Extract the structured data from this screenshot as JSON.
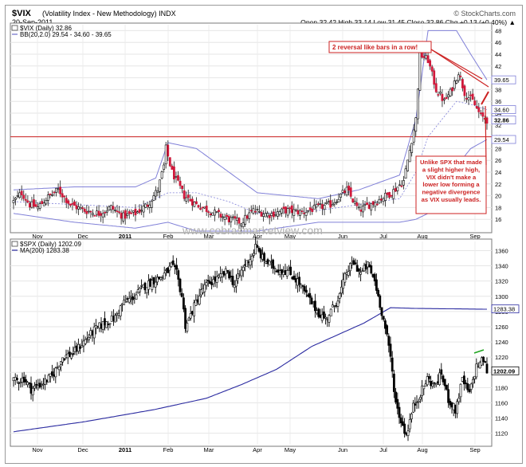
{
  "header": {
    "symbol": "$VIX",
    "name": "(Volatility Index - New Methodology) INDX",
    "date": "20-Sep-2011",
    "watermark_top": "© StockCharts.com",
    "quote": "Open 32.42  High 33.14  Low 31.45  Close 32.86  Chg +0.13 (+0.40%) ▲"
  },
  "watermark": "www.cobrasmarketview.com",
  "chart_data": [
    {
      "type": "candlestick",
      "title": "$VIX (Daily) 32.86",
      "legend": [
        "$VIX (Daily) 32.86",
        "BB(20,2.0) 29.54 - 34.60 - 39.65"
      ],
      "x_tick_labels": [
        "Nov",
        "Dec",
        "2011",
        "Feb",
        "Mar",
        "Apr",
        "May",
        "Jun",
        "Jul",
        "Aug",
        "Sep"
      ],
      "y_tick_labels": [
        16,
        18,
        20,
        22,
        24,
        26,
        28,
        30,
        32,
        34,
        36,
        38,
        40,
        42,
        44,
        46,
        48
      ],
      "ylim": [
        14,
        49
      ],
      "price_labels": {
        "upper_bb": "39.65",
        "mid_bb": "34.60",
        "close": "32.86",
        "lower_bb": "29.54"
      },
      "horizontal_line": 30,
      "annotations": [
        "2 reversal like bars in a row!",
        "Unlike SPX that made a slight higher high, VIX didn't make a lower low forming a negative divergence as VIX usually leads."
      ],
      "close_path": [
        [
          0,
          19
        ],
        [
          4,
          20.5
        ],
        [
          8,
          18.5
        ],
        [
          12,
          18
        ],
        [
          16,
          19.5
        ],
        [
          22,
          21
        ],
        [
          28,
          18.5
        ],
        [
          35,
          17.5
        ],
        [
          42,
          17
        ],
        [
          48,
          18
        ],
        [
          54,
          16.5
        ],
        [
          60,
          17
        ],
        [
          66,
          18.5
        ],
        [
          71,
          21
        ],
        [
          74,
          25
        ],
        [
          75,
          28
        ],
        [
          78,
          24
        ],
        [
          84,
          20
        ],
        [
          90,
          18.5
        ],
        [
          98,
          17.2
        ],
        [
          106,
          16
        ],
        [
          112,
          15.5
        ],
        [
          118,
          17.5
        ],
        [
          126,
          16.8
        ],
        [
          134,
          17.5
        ],
        [
          142,
          17.2
        ],
        [
          150,
          18
        ],
        [
          156,
          18.5
        ],
        [
          164,
          21
        ],
        [
          170,
          17.5
        ],
        [
          178,
          19
        ],
        [
          186,
          20.5
        ],
        [
          192,
          22.5
        ],
        [
          198,
          33
        ],
        [
          200,
          44
        ],
        [
          204,
          43
        ],
        [
          208,
          38
        ],
        [
          212,
          36
        ],
        [
          215,
          37.5
        ],
        [
          219,
          41
        ],
        [
          222,
          37.5
        ],
        [
          226,
          36
        ],
        [
          230,
          33.5
        ],
        [
          233,
          32.86
        ]
      ],
      "bb_upper_path": [
        [
          0,
          21
        ],
        [
          30,
          21.5
        ],
        [
          60,
          21.5
        ],
        [
          70,
          23
        ],
        [
          76,
          29
        ],
        [
          90,
          28
        ],
        [
          106,
          24
        ],
        [
          120,
          20.5
        ],
        [
          150,
          19.5
        ],
        [
          170,
          21
        ],
        [
          190,
          23.5
        ],
        [
          198,
          33
        ],
        [
          204,
          48
        ],
        [
          218,
          48
        ],
        [
          225,
          44
        ],
        [
          233,
          39.65
        ]
      ],
      "bb_mid_path": [
        [
          0,
          19
        ],
        [
          30,
          18.5
        ],
        [
          60,
          18
        ],
        [
          76,
          20.5
        ],
        [
          90,
          20.5
        ],
        [
          106,
          19
        ],
        [
          120,
          17
        ],
        [
          150,
          17.5
        ],
        [
          170,
          18.5
        ],
        [
          190,
          19.5
        ],
        [
          198,
          24
        ],
        [
          204,
          30
        ],
        [
          218,
          36
        ],
        [
          225,
          35.5
        ],
        [
          233,
          34.6
        ]
      ],
      "bb_lower_path": [
        [
          0,
          17
        ],
        [
          30,
          15.5
        ],
        [
          60,
          14.5
        ],
        [
          76,
          15.5
        ],
        [
          90,
          14
        ],
        [
          106,
          14
        ],
        [
          120,
          14
        ],
        [
          150,
          15.5
        ],
        [
          170,
          15.5
        ],
        [
          190,
          15.5
        ],
        [
          198,
          16
        ],
        [
          204,
          17
        ],
        [
          212,
          20
        ],
        [
          218,
          25
        ],
        [
          225,
          28
        ],
        [
          233,
          29.54
        ]
      ]
    },
    {
      "type": "candlestick",
      "title": "$SPX (Daily) 1202.09",
      "legend": [
        "$SPX (Daily) 1202.09",
        "MA(200) 1283.38"
      ],
      "x_tick_labels": [
        "Nov",
        "Dec",
        "2011",
        "Feb",
        "Mar",
        "Apr",
        "May",
        "Jun",
        "Jul",
        "Aug",
        "Sep"
      ],
      "y_tick_labels": [
        1120,
        1140,
        1160,
        1180,
        1200,
        1220,
        1240,
        1260,
        1280,
        1300,
        1320,
        1340,
        1360
      ],
      "ylim": [
        1105,
        1372
      ],
      "price_labels": {
        "ma200": "1283.38",
        "close": "1202.09"
      },
      "close_path": [
        [
          0,
          1188
        ],
        [
          6,
          1192
        ],
        [
          10,
          1178
        ],
        [
          16,
          1185
        ],
        [
          22,
          1195
        ],
        [
          28,
          1220
        ],
        [
          34,
          1225
        ],
        [
          40,
          1240
        ],
        [
          46,
          1255
        ],
        [
          52,
          1265
        ],
        [
          58,
          1272
        ],
        [
          62,
          1290
        ],
        [
          66,
          1296
        ],
        [
          70,
          1302
        ],
        [
          74,
          1312
        ],
        [
          80,
          1321
        ],
        [
          84,
          1325
        ],
        [
          88,
          1333
        ],
        [
          90,
          1340
        ],
        [
          93,
          1330
        ],
        [
          96,
          1300
        ],
        [
          98,
          1262
        ],
        [
          100,
          1270
        ],
        [
          104,
          1292
        ],
        [
          108,
          1310
        ],
        [
          112,
          1318
        ],
        [
          118,
          1325
        ],
        [
          122,
          1333
        ],
        [
          126,
          1315
        ],
        [
          132,
          1342
        ],
        [
          136,
          1353
        ],
        [
          138,
          1365
        ],
        [
          142,
          1350
        ],
        [
          146,
          1342
        ],
        [
          150,
          1336
        ],
        [
          156,
          1333
        ],
        [
          162,
          1320
        ],
        [
          168,
          1298
        ],
        [
          174,
          1278
        ],
        [
          178,
          1270
        ],
        [
          182,
          1284
        ],
        [
          186,
          1302
        ],
        [
          190,
          1332
        ],
        [
          194,
          1344
        ],
        [
          198,
          1330
        ],
        [
          202,
          1341
        ],
        [
          206,
          1320
        ],
        [
          209,
          1290
        ],
        [
          212,
          1258
        ],
        [
          215,
          1220
        ],
        [
          218,
          1160
        ],
        [
          221,
          1136
        ],
        [
          224,
          1118
        ],
        [
          228,
          1155
        ],
        [
          232,
          1172
        ],
        [
          236,
          1192
        ],
        [
          240,
          1182
        ],
        [
          244,
          1198
        ],
        [
          248,
          1165
        ],
        [
          252,
          1150
        ],
        [
          256,
          1190
        ],
        [
          260,
          1172
        ],
        [
          264,
          1208
        ],
        [
          268,
          1217
        ],
        [
          270,
          1202
        ]
      ],
      "ma200_path": [
        [
          0,
          1122
        ],
        [
          40,
          1135
        ],
        [
          80,
          1151
        ],
        [
          110,
          1166
        ],
        [
          130,
          1184
        ],
        [
          150,
          1204
        ],
        [
          170,
          1234
        ],
        [
          200,
          1265
        ],
        [
          215,
          1285
        ],
        [
          230,
          1284
        ],
        [
          270,
          1283
        ]
      ],
      "divergence_marker": "green line above SPX September high"
    }
  ]
}
